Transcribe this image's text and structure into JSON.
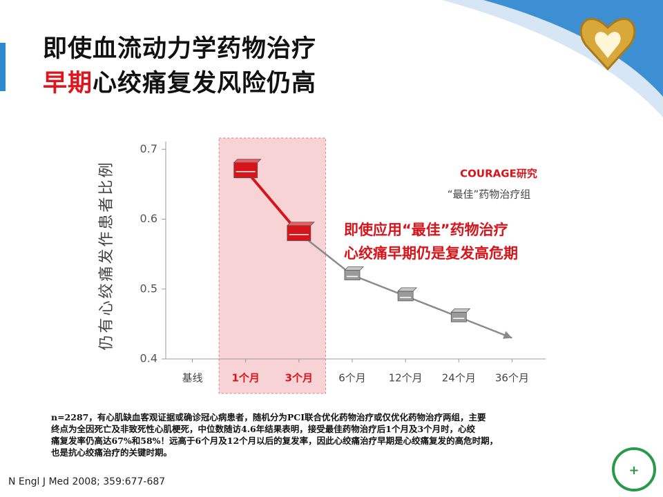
{
  "slide": {
    "title_line1": "即使血流动力学药物治疗",
    "title_line2_red": "早期",
    "title_line2": "心绞痛复发风险仍高",
    "footnote": [
      "n=2287，有心肌缺血客观证据或确诊冠心病患者，随机分为PCI联合优化药物治疗或仅优化药物治疗两组，主要",
      "终点为全因死亡及非致死性心肌梗死，中位数随访4.6年结果表明，接受最佳药物治疗后1个月及3个月时，心绞",
      "痛复发率仍高达67%和58%！远高于6个月及12个月以后的复发率，因此心绞痛治疗早期是心绞痛复发的高危时期，",
      "也是抗心绞痛治疗的关键时期。"
    ],
    "citation": "N Engl J Med 2008; 359:677-687"
  },
  "chart_data": {
    "type": "line",
    "y_label": "仍有心绞痛发作患者比例",
    "legend_title": "COURAGE研究",
    "annotation": [
      "即使应用“最佳”药物治疗",
      "心绞痛早期仍是复发高危期"
    ],
    "categories": [
      "基线",
      "1个月",
      "3个月",
      "6个月",
      "12个月",
      "24个月",
      "36个月"
    ],
    "series": [
      {
        "name": "“最佳”药物治疗组",
        "color": "#8a8a8a",
        "values": [
          null,
          0.67,
          0.58,
          0.52,
          0.49,
          0.46,
          0.43
        ]
      }
    ],
    "highlight": [
      1,
      2
    ],
    "highlight_color": "#d7141a",
    "ylim": [
      0.4,
      0.72
    ],
    "yticks": [
      0.4,
      0.5,
      0.6,
      0.7
    ]
  }
}
